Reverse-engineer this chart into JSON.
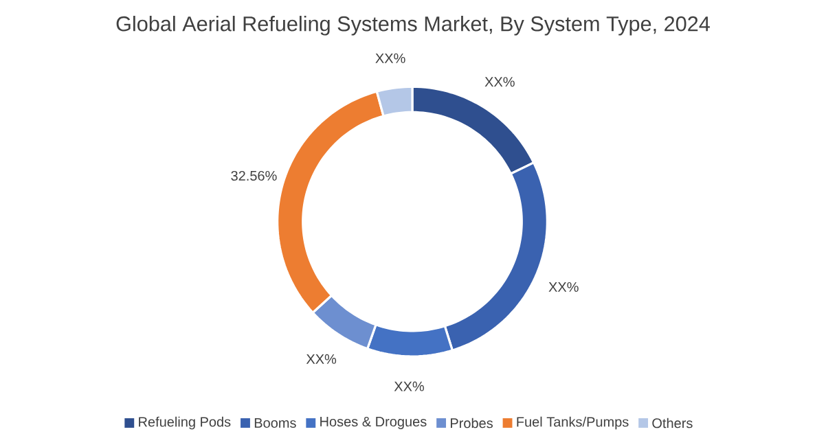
{
  "chart_data": {
    "type": "donut",
    "title": "Global Aerial Refueling Systems Market, By System Type, 2024",
    "categories": [
      "Refueling Pods",
      "Booms",
      "Hoses & Drogues",
      "Probes",
      "Fuel Tanks/Pumps",
      "Others"
    ],
    "values": [
      17.8,
      27.4,
      10.2,
      7.8,
      32.56,
      4.24
    ],
    "value_labels": [
      "XX%",
      "XX%",
      "XX%",
      "XX%",
      "32.56%",
      "XX%"
    ],
    "colors": [
      "#2f4f8f",
      "#3a62b0",
      "#4472c4",
      "#6d8fd0",
      "#ed7d31",
      "#b4c7e7"
    ],
    "legend": "bottom"
  }
}
